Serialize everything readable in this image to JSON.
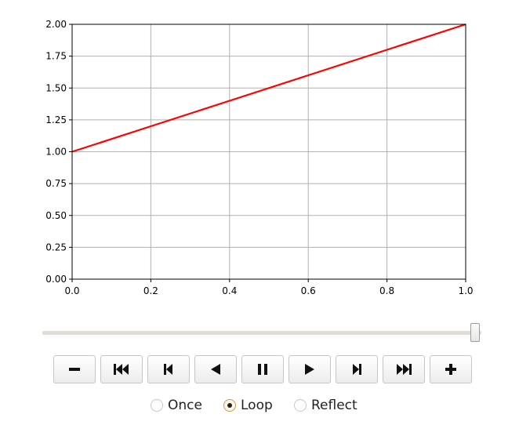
{
  "chart_data": {
    "type": "line",
    "title": "",
    "xlabel": "",
    "ylabel": "",
    "xlim": [
      0.0,
      1.0
    ],
    "ylim": [
      0.0,
      2.0
    ],
    "grid": true,
    "x_ticks": [
      "0.0",
      "0.2",
      "0.4",
      "0.6",
      "0.8",
      "1.0"
    ],
    "y_ticks": [
      "0.00",
      "0.25",
      "0.50",
      "0.75",
      "1.00",
      "1.25",
      "1.50",
      "1.75",
      "2.00"
    ],
    "series": [
      {
        "color": "#ff0000",
        "x": [
          0.0,
          0.2,
          0.4,
          0.6,
          0.8,
          1.0
        ],
        "y": [
          1.0,
          1.2,
          1.4,
          1.6,
          1.8,
          2.0
        ]
      }
    ]
  },
  "player": {
    "slider": {
      "value": 1.0
    },
    "buttons": [
      {
        "key": "slower",
        "icon": "minus-icon"
      },
      {
        "key": "first",
        "icon": "first-frame-icon"
      },
      {
        "key": "prev",
        "icon": "previous-frame-icon"
      },
      {
        "key": "reverse",
        "icon": "play-reverse-icon"
      },
      {
        "key": "pause",
        "icon": "pause-icon"
      },
      {
        "key": "play",
        "icon": "play-icon"
      },
      {
        "key": "next",
        "icon": "next-frame-icon"
      },
      {
        "key": "last",
        "icon": "last-frame-icon"
      },
      {
        "key": "faster",
        "icon": "plus-icon"
      }
    ],
    "modes": [
      {
        "label": "Once",
        "checked": false
      },
      {
        "label": "Loop",
        "checked": true
      },
      {
        "label": "Reflect",
        "checked": false
      }
    ]
  }
}
